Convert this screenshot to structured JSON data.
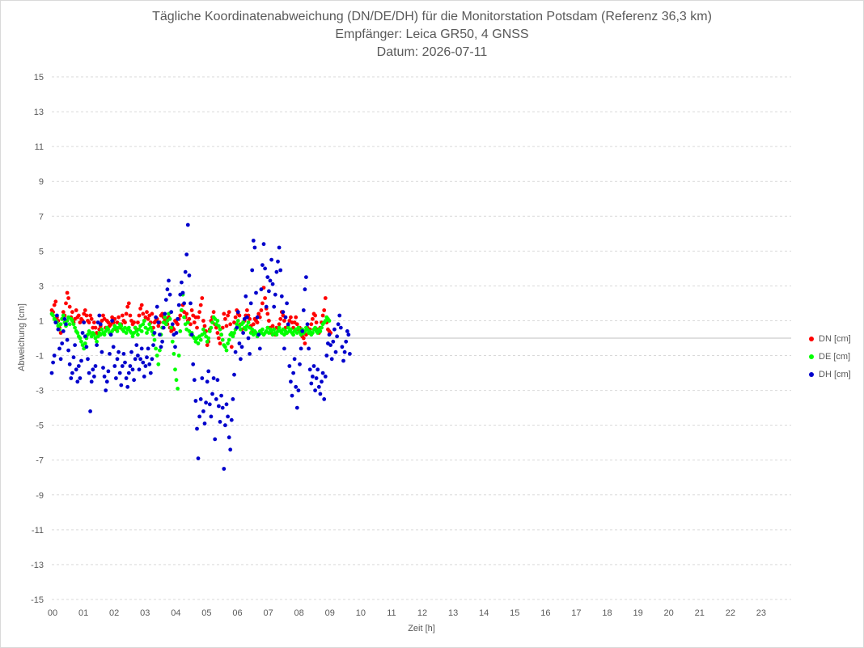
{
  "titles": {
    "line1": "Tägliche Koordinatenabweichung (DN/DE/DH) für die Monitorstation Potsdam (Referenz 36,3 km)",
    "line2": "Empfänger: Leica GR50, 4 GNSS",
    "line3": "Datum: 2026-07-11"
  },
  "colors": {
    "DN": "#ff0000",
    "DE": "#00ff00",
    "DH": "#0000cc",
    "grid": "#d9d9d9",
    "text": "#595959"
  },
  "chart_data": {
    "type": "scatter",
    "title": "Tägliche Koordinatenabweichung (DN/DE/DH) für die Monitorstation Potsdam (Referenz 36,3 km)",
    "subtitle": [
      "Empfänger: Leica GR50, 4 GNSS",
      "Datum: 2026-07-11"
    ],
    "xlabel": "Zeit [h]",
    "ylabel": "Abweichung [cm]",
    "xlim": [
      0,
      24
    ],
    "ylim": [
      -15,
      15
    ],
    "x_ticks": [
      "00",
      "01",
      "02",
      "03",
      "04",
      "05",
      "06",
      "07",
      "08",
      "09",
      "10",
      "11",
      "12",
      "13",
      "14",
      "15",
      "16",
      "17",
      "18",
      "19",
      "20",
      "21",
      "22",
      "23"
    ],
    "y_ticks": [
      "15",
      "13",
      "11",
      "9",
      "7",
      "5",
      "3",
      "1",
      "-1",
      "-3",
      "-5",
      "-7",
      "-9",
      "-11",
      "-13",
      "-15"
    ],
    "grid": "horizontal dashed",
    "legend_position": "right",
    "sampling_interval_h": 0.0417,
    "series": [
      {
        "name": "DN [cm]",
        "values": [
          1.6,
          1.5,
          1.9,
          2.1,
          1.2,
          1.0,
          0.6,
          0.3,
          1.1,
          1.5,
          1.3,
          2.0,
          2.6,
          2.3,
          1.8,
          1.2,
          1.5,
          0.9,
          1.1,
          1.6,
          1.2,
          1.3,
          0.9,
          1.1,
          1.0,
          1.4,
          1.6,
          1.3,
          1.0,
          0.9,
          1.3,
          1.1,
          0.6,
          0.9,
          0.6,
          0.3,
          0.1,
          0.5,
          0.7,
          1.0,
          1.3,
          1.1,
          0.6,
          1.0,
          0.9,
          0.7,
          0.8,
          1.2,
          0.9,
          1.1,
          0.5,
          0.9,
          1.2,
          0.6,
          0.8,
          1.3,
          1.0,
          0.9,
          1.4,
          1.8,
          2.0,
          1.3,
          1.0,
          0.8,
          0.9,
          0.6,
          0.5,
          0.9,
          1.3,
          1.7,
          1.9,
          1.4,
          1.0,
          1.2,
          1.5,
          1.1,
          1.3,
          0.9,
          1.4,
          0.6,
          0.9,
          1.0,
          1.1,
          0.7,
          0.9,
          1.3,
          1.4,
          1.2,
          1.0,
          1.1,
          0.8,
          1.2,
          0.6,
          0.4,
          0.6,
          0.5,
          1.0,
          0.9,
          0.8,
          1.1,
          1.3,
          1.6,
          1.9,
          1.5,
          1.2,
          1.4,
          1.0,
          1.1,
          0.8,
          1.6,
          1.3,
          0.9,
          1.2,
          0.6,
          1.2,
          1.5,
          1.9,
          2.3,
          1.0,
          0.7,
          0.4,
          -0.4,
          -0.2,
          0.5,
          1.0,
          1.2,
          1.5,
          0.8,
          0.6,
          0.3,
          0.0,
          -0.3,
          0.2,
          0.6,
          1.4,
          1.1,
          0.7,
          1.3,
          1.5,
          0.8,
          -0.5,
          0.2,
          0.9,
          1.2,
          1.6,
          1.4,
          1.3,
          0.8,
          0.5,
          0.9,
          1.0,
          1.3,
          1.6,
          1.3,
          1.1,
          0.7,
          0.4,
          0.8,
          1.1,
          1.0,
          0.9,
          1.4,
          1.2,
          1.6,
          2.0,
          2.9,
          2.3,
          1.7,
          1.4,
          1.0,
          0.6,
          0.3,
          0.7,
          0.5,
          0.2,
          0.6,
          0.4,
          0.8,
          1.1,
          1.5,
          1.3,
          1.0,
          0.6,
          0.3,
          0.7,
          1.0,
          1.2,
          0.9,
          0.6,
          0.9,
          1.2,
          0.8,
          0.5,
          0.6,
          0.3,
          0.1,
          0.0,
          -0.3,
          0.2,
          0.6,
          0.3,
          0.5,
          0.8,
          1.1,
          1.4,
          1.3,
          0.9,
          0.5,
          0.3,
          0.6,
          0.9,
          1.3,
          1.6,
          2.3,
          0.9,
          0.5,
          0.4,
          0.3
        ]
      },
      {
        "name": "DE [cm]",
        "values": [
          1.4,
          1.3,
          1.1,
          1.0,
          0.9,
          0.7,
          0.5,
          0.8,
          1.1,
          1.3,
          0.9,
          0.7,
          1.0,
          1.2,
          0.8,
          1.1,
          1.0,
          0.8,
          0.6,
          0.4,
          0.3,
          0.1,
          0.0,
          -0.2,
          -0.4,
          -0.6,
          -0.3,
          0.0,
          0.2,
          0.4,
          0.3,
          0.1,
          0.3,
          0.2,
          0.0,
          -0.2,
          0.1,
          0.3,
          0.2,
          0.5,
          0.3,
          0.2,
          0.4,
          0.6,
          0.5,
          0.3,
          0.2,
          0.4,
          0.5,
          0.7,
          0.6,
          0.4,
          0.6,
          0.8,
          0.7,
          0.5,
          0.4,
          0.6,
          0.3,
          0.5,
          0.6,
          0.4,
          0.3,
          0.1,
          0.3,
          0.6,
          0.4,
          0.2,
          0.5,
          0.7,
          0.4,
          0.8,
          1.0,
          0.6,
          0.3,
          0.5,
          0.8,
          0.6,
          0.4,
          0.2,
          -0.1,
          -0.6,
          -1.0,
          -1.5,
          -0.7,
          0.2,
          0.6,
          0.9,
          1.2,
          0.8,
          1.0,
          1.4,
          1.1,
          0.6,
          -0.2,
          -0.9,
          -1.8,
          -2.4,
          -2.9,
          -1.0,
          0.4,
          1.6,
          2.5,
          1.2,
          0.8,
          0.5,
          0.9,
          0.4,
          0.2,
          0.3,
          0.1,
          0.0,
          -0.2,
          0.0,
          -0.3,
          0.1,
          -0.1,
          0.2,
          0.5,
          0.3,
          0.1,
          -0.2,
          0.0,
          0.4,
          0.6,
          0.9,
          1.2,
          1.1,
          0.8,
          1.0,
          0.7,
          0.5,
          0.2,
          -0.1,
          -0.4,
          -0.5,
          -0.7,
          -0.3,
          -0.1,
          0.2,
          0.3,
          0.1,
          0.3,
          0.5,
          0.8,
          1.0,
          0.7,
          0.5,
          0.8,
          0.9,
          0.6,
          0.5,
          0.7,
          0.9,
          0.6,
          0.3,
          0.5,
          0.2,
          0.4,
          0.3,
          0.1,
          0.2,
          0.4,
          0.3,
          0.5,
          0.2,
          0.3,
          0.4,
          0.6,
          0.3,
          0.5,
          0.4,
          0.2,
          0.5,
          0.3,
          0.2,
          0.4,
          0.6,
          0.4,
          0.3,
          0.5,
          0.2,
          0.4,
          0.3,
          0.6,
          0.4,
          0.5,
          0.3,
          0.2,
          0.4,
          0.5,
          0.3,
          0.6,
          0.4,
          0.2,
          0.5,
          0.3,
          0.4,
          0.6,
          0.5,
          0.3,
          0.4,
          0.2,
          0.3,
          0.5,
          0.6,
          0.4,
          0.3,
          0.5,
          0.4,
          0.6,
          0.8,
          0.9,
          1.0,
          1.2,
          1.1,
          1.0
        ]
      },
      {
        "name": "DH [cm]",
        "values": [
          -2.0,
          -1.4,
          -1.0,
          0.9,
          1.3,
          0.5,
          -0.6,
          -1.2,
          -0.3,
          0.4,
          1.1,
          0.8,
          -0.1,
          -0.7,
          -1.5,
          -2.3,
          -2.0,
          -1.1,
          -0.4,
          -1.8,
          -2.5,
          -1.6,
          -2.3,
          -1.3,
          0.3,
          0.9,
          0.1,
          -0.5,
          -1.2,
          -2.0,
          -4.2,
          -2.5,
          -1.8,
          -2.2,
          -1.6,
          -0.4,
          0.9,
          1.3,
          0.8,
          -0.8,
          -1.7,
          -2.2,
          -3.0,
          -2.5,
          -1.9,
          -0.9,
          0.2,
          1.0,
          -0.5,
          -1.6,
          -2.3,
          -1.2,
          -0.8,
          -2.0,
          -2.7,
          -1.6,
          -0.9,
          -1.4,
          -2.3,
          -2.8,
          -2.0,
          -1.6,
          -0.8,
          -1.8,
          -2.4,
          -1.2,
          -0.4,
          -1.0,
          -1.8,
          -1.2,
          -0.6,
          -1.4,
          -2.2,
          -1.6,
          -1.1,
          -0.6,
          -1.5,
          -2.0,
          -1.2,
          -0.4,
          0.3,
          1.2,
          1.8,
          0.9,
          0.2,
          -0.5,
          -0.2,
          0.6,
          1.4,
          2.2,
          2.8,
          3.3,
          2.5,
          1.5,
          0.8,
          0.2,
          -0.5,
          0.3,
          1.1,
          1.9,
          2.5,
          3.2,
          2.6,
          2.0,
          3.8,
          4.8,
          6.5,
          3.6,
          2.0,
          0.2,
          -1.5,
          -2.4,
          -3.6,
          -5.2,
          -6.9,
          -4.5,
          -3.5,
          -2.3,
          -4.2,
          -4.9,
          -3.7,
          -2.5,
          -1.9,
          -3.8,
          -4.5,
          -3.2,
          -2.3,
          -5.8,
          -3.5,
          -2.4,
          -3.9,
          -4.8,
          -3.3,
          -4.0,
          -7.5,
          -5.0,
          -3.8,
          -4.5,
          -5.7,
          -6.4,
          -4.7,
          -3.5,
          -2.1,
          -0.8,
          0.6,
          1.5,
          -0.3,
          -1.2,
          -0.5,
          0.3,
          1.1,
          2.4,
          1.2,
          0.0,
          -0.9,
          2.0,
          3.9,
          5.6,
          5.2,
          2.6,
          1.2,
          0.2,
          -0.6,
          2.8,
          4.2,
          5.4,
          4.0,
          1.8,
          3.5,
          2.7,
          3.3,
          4.5,
          3.1,
          1.8,
          2.5,
          3.8,
          4.4,
          5.2,
          3.9,
          2.4,
          1.5,
          -0.6,
          1.2,
          2.0,
          0.8,
          -1.6,
          -2.5,
          -3.3,
          -2.0,
          -1.2,
          -2.8,
          -4.0,
          -3.0,
          -1.5,
          -0.6,
          0.4,
          1.6,
          2.8,
          3.5,
          0.8,
          -0.6,
          -1.8,
          -2.6,
          -2.2,
          -1.6,
          -3.0,
          -2.3,
          -1.8,
          -2.8,
          -3.2,
          -2.5,
          -2.0,
          -3.5,
          -2.2,
          -1.0,
          -0.3,
          0.2,
          -0.4,
          -1.2,
          -0.2,
          0.5,
          -0.8,
          0.1,
          0.8,
          1.3,
          0.6,
          -0.5,
          -1.3,
          -0.8,
          -0.2,
          0.4,
          0.2,
          -0.9
        ]
      }
    ]
  }
}
